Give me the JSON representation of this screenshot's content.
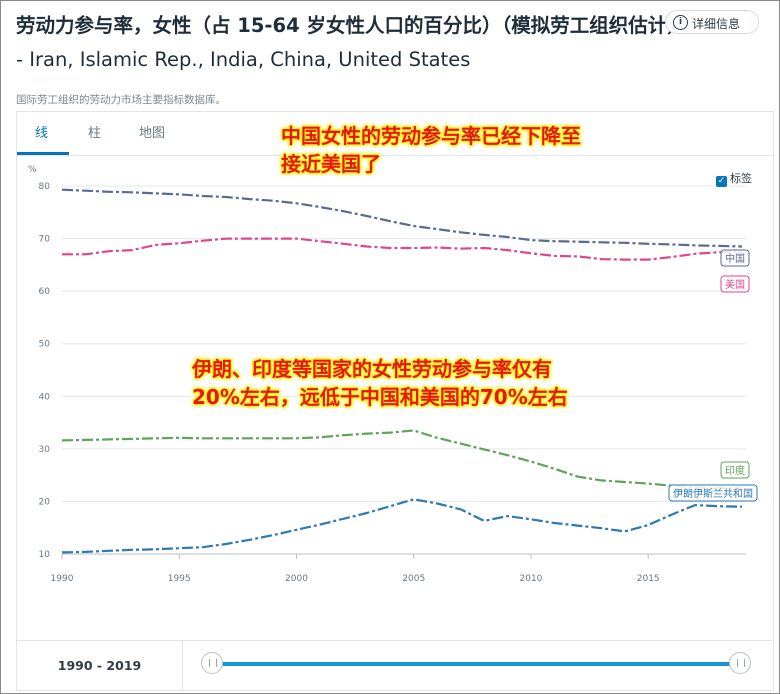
{
  "title": "劳动力参与率，女性（占 15-64 岁女性人口的百分比）（模拟劳工组织估计）",
  "subtitle": "- Iran, Islamic Rep., India, China, United States",
  "source": "国际劳工组织的劳动力市场主要指标数据库。",
  "tabs": [
    {
      "label": "线",
      "active": true
    },
    {
      "label": "柱",
      "active": false
    },
    {
      "label": "地图",
      "active": false
    }
  ],
  "details_button": {
    "icon_text": "i",
    "label": "详细信息"
  },
  "label_toggle": {
    "checkmark": "✓",
    "label": "标签",
    "checked": true
  },
  "annotations": {
    "line1": "中国女性的劳动参与率已经下降至",
    "line2": "接近美国了",
    "line3": "伊朗、印度等国家的女性劳动参与率仅有",
    "line4": "20%左右，远低于中国和美国的70%左右"
  },
  "range": {
    "label": "1990 - 2019",
    "start": 1990,
    "end": 2019
  },
  "colors": {
    "china": "#5a6a96",
    "us": "#e0468e",
    "india": "#5fa35a",
    "iran": "#2c7ab5",
    "accent": "#0a74b9",
    "annotation_text": "#e8160c",
    "annotation_glow": "#fff32a"
  },
  "chart_data": {
    "type": "line",
    "ylabel": "%",
    "ylim": [
      10,
      80
    ],
    "yticks": [
      10,
      20,
      30,
      40,
      50,
      60,
      70,
      80
    ],
    "xlim": [
      1990,
      2019
    ],
    "xticks": [
      1990,
      1995,
      2000,
      2005,
      2010,
      2015
    ],
    "grid": true,
    "x": [
      1990,
      1991,
      1992,
      1993,
      1994,
      1995,
      1996,
      1997,
      1998,
      1999,
      2000,
      2001,
      2002,
      2003,
      2004,
      2005,
      2006,
      2007,
      2008,
      2009,
      2010,
      2011,
      2012,
      2013,
      2014,
      2015,
      2016,
      2017,
      2018,
      2019
    ],
    "series": [
      {
        "name": "中国",
        "key": "china",
        "values": [
          79.3,
          79.1,
          78.9,
          78.8,
          78.6,
          78.4,
          78.1,
          77.9,
          77.5,
          77.2,
          76.7,
          76.0,
          75.2,
          74.3,
          73.3,
          72.4,
          71.8,
          71.2,
          70.7,
          70.3,
          69.7,
          69.5,
          69.4,
          69.3,
          69.2,
          69.0,
          68.9,
          68.7,
          68.6,
          68.5
        ]
      },
      {
        "name": "美国",
        "key": "us",
        "values": [
          67.0,
          67.0,
          67.6,
          67.8,
          68.8,
          69.1,
          69.6,
          70.0,
          70.0,
          70.0,
          70.0,
          69.5,
          69.0,
          68.5,
          68.2,
          68.2,
          68.3,
          68.1,
          68.2,
          67.8,
          67.2,
          66.7,
          66.6,
          66.1,
          66.0,
          66.0,
          66.5,
          67.1,
          67.4,
          67.6
        ]
      },
      {
        "name": "印度",
        "key": "india",
        "values": [
          31.6,
          31.7,
          31.8,
          31.9,
          32.0,
          32.1,
          32.0,
          32.0,
          32.0,
          32.0,
          32.0,
          32.2,
          32.6,
          32.9,
          33.1,
          33.5,
          32.1,
          31.0,
          29.9,
          28.8,
          27.6,
          26.2,
          24.7,
          24.0,
          23.7,
          23.4,
          23.0,
          22.7,
          22.6,
          22.5
        ]
      },
      {
        "name": "伊朗伊斯兰共和国",
        "key": "iran",
        "values": [
          10.3,
          10.4,
          10.6,
          10.8,
          10.9,
          11.1,
          11.3,
          11.9,
          12.7,
          13.6,
          14.6,
          15.6,
          16.7,
          17.8,
          19.1,
          20.4,
          19.6,
          18.5,
          16.3,
          17.2,
          16.6,
          15.9,
          15.4,
          14.9,
          14.3,
          15.5,
          17.5,
          19.3,
          19.1,
          19.0
        ]
      }
    ]
  }
}
